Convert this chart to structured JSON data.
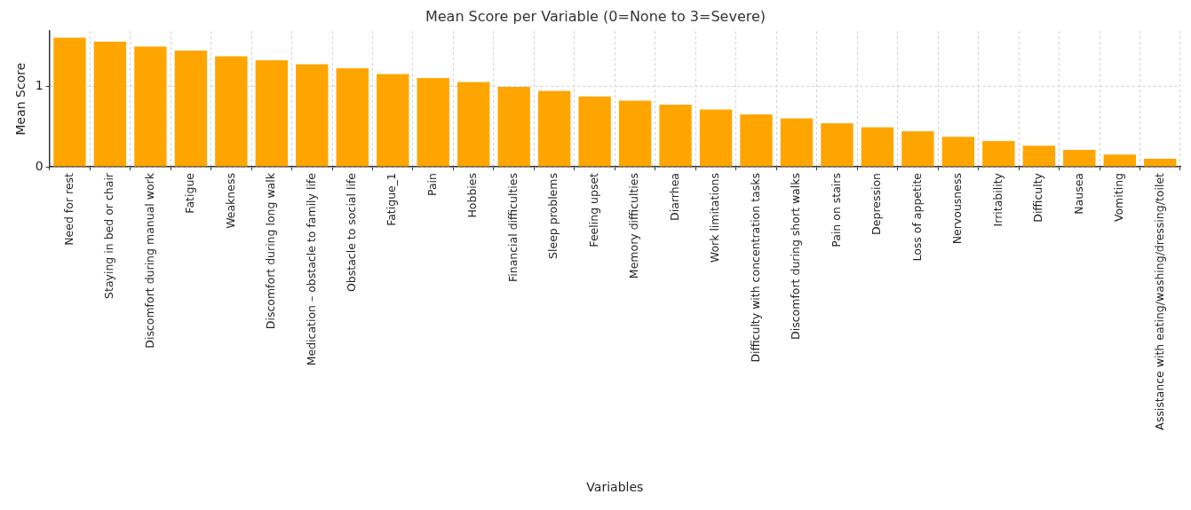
{
  "chart_data": {
    "type": "bar",
    "title": "Mean Score per Variable (0=None to 3=Severe)",
    "xlabel": "Variables",
    "ylabel": "Mean Score",
    "categories": [
      "Need for rest",
      "Staying in bed or chair",
      "Discomfort during manual work",
      "Fatigue",
      "Weakness",
      "Discomfort during long walk",
      "Medication – obstacle to family life",
      "Obstacle to social life",
      "Fatigue_1",
      "Pain",
      "Hobbies",
      "Financial difficulties",
      "Sleep problems",
      "Feeling upset",
      "Memory difficulties",
      "Diarrhea",
      "Work limitations",
      "Difficulty with concentration tasks",
      "Discomfort during short walks",
      "Pain on stairs",
      "Depression",
      "Loss of appetite",
      "Nervousness",
      "Irritability",
      "Difficulty",
      "Nausea",
      "Vomiting",
      "Assistance with eating/washing/dressing/toilet"
    ],
    "values": [
      1.6,
      1.55,
      1.49,
      1.44,
      1.37,
      1.32,
      1.27,
      1.22,
      1.15,
      1.1,
      1.05,
      0.99,
      0.94,
      0.87,
      0.82,
      0.77,
      0.71,
      0.65,
      0.6,
      0.54,
      0.49,
      0.44,
      0.37,
      0.32,
      0.26,
      0.21,
      0.15,
      0.1
    ],
    "color": "#ffa500",
    "ylim": [
      0,
      1.68
    ],
    "yticks": [
      0,
      1
    ],
    "grid": true
  }
}
